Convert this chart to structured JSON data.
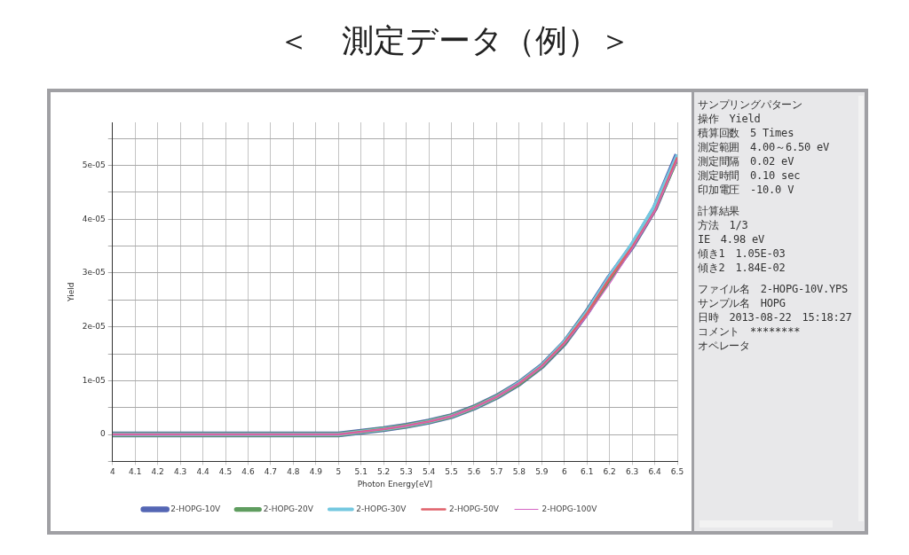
{
  "chart_data": {
    "type": "line",
    "title": "＜　測定データ（例）＞",
    "xlabel": "Photon Energy[eV]",
    "ylabel": "Yield",
    "x": [
      4.0,
      4.1,
      4.2,
      4.3,
      4.4,
      4.5,
      4.6,
      4.7,
      4.8,
      4.9,
      5.0,
      5.1,
      5.2,
      5.3,
      5.4,
      5.5,
      5.6,
      5.7,
      5.8,
      5.9,
      6.0,
      6.1,
      6.2,
      6.3,
      6.4,
      6.5
    ],
    "series": [
      {
        "name": "2-HOPG-10V",
        "color": "#5466b4",
        "values": [
          0,
          0,
          0,
          0,
          0,
          0,
          0,
          0,
          0,
          0,
          0,
          5e-07,
          1e-06,
          1.6e-06,
          2.4e-06,
          3.4e-06,
          5e-06,
          7e-06,
          9.5e-06,
          1.27e-05,
          1.7e-05,
          2.27e-05,
          2.92e-05,
          3.5e-05,
          4.2e-05,
          5.2e-05
        ]
      },
      {
        "name": "2-HOPG-20V",
        "color": "#5f9d5f",
        "values": [
          0,
          0,
          0,
          0,
          0,
          0,
          0,
          0,
          0,
          0,
          0,
          5e-07,
          1e-06,
          1.6e-06,
          2.4e-06,
          3.4e-06,
          5e-06,
          7e-06,
          9.5e-06,
          1.27e-05,
          1.7e-05,
          2.27e-05,
          2.9e-05,
          3.5e-05,
          4.2e-05,
          5.15e-05
        ]
      },
      {
        "name": "2-HOPG-30V",
        "color": "#74c8e0",
        "values": [
          0,
          0,
          0,
          0,
          0,
          0,
          0,
          0,
          0,
          0,
          0,
          5e-07,
          1e-06,
          1.6e-06,
          2.4e-06,
          3.4e-06,
          5e-06,
          7e-06,
          9.6e-06,
          1.28e-05,
          1.72e-05,
          2.28e-05,
          2.94e-05,
          3.55e-05,
          4.25e-05,
          5.2e-05
        ]
      },
      {
        "name": "2-HOPG-50V",
        "color": "#e0606a",
        "values": [
          0,
          0,
          0,
          0,
          0,
          0,
          0,
          0,
          0,
          0,
          0,
          5e-07,
          1e-06,
          1.6e-06,
          2.4e-06,
          3.4e-06,
          5e-06,
          7e-06,
          9.5e-06,
          1.27e-05,
          1.7e-05,
          2.25e-05,
          2.9e-05,
          3.48e-05,
          4.15e-05,
          5.15e-05
        ]
      },
      {
        "name": "2-HOPG-100V",
        "color": "#d464c4",
        "values": [
          0,
          0,
          0,
          0,
          0,
          0,
          0,
          0,
          0,
          0,
          0,
          5e-07,
          1e-06,
          1.6e-06,
          2.4e-06,
          3.4e-06,
          5e-06,
          7e-06,
          9.5e-06,
          1.26e-05,
          1.68e-05,
          2.2e-05,
          2.8e-05,
          3.45e-05,
          4.15e-05,
          5.1e-05
        ]
      }
    ],
    "xlim": [
      4,
      6.5
    ],
    "xticks": [
      4,
      4.1,
      4.2,
      4.3,
      4.4,
      4.5,
      4.6,
      4.7,
      4.8,
      4.9,
      5,
      5.1,
      5.2,
      5.3,
      5.4,
      5.5,
      5.6,
      5.7,
      5.8,
      5.9,
      6,
      6.1,
      6.2,
      6.3,
      6.4,
      6.5
    ],
    "ylim": [
      -5e-06,
      5.8e-05
    ],
    "yticks": [
      {
        "value": -5e-06,
        "label": null
      },
      0,
      {
        "value": 5e-06,
        "label": null
      },
      {
        "value": 1e-05,
        "label": "1e-05"
      },
      {
        "value": 1.5e-05,
        "label": null
      },
      {
        "value": 2e-05,
        "label": "2e-05"
      },
      {
        "value": 2.5e-05,
        "label": null
      },
      {
        "value": 3e-05,
        "label": "3e-05"
      },
      {
        "value": 3.5e-05,
        "label": null
      },
      {
        "value": 4e-05,
        "label": "4e-05"
      },
      {
        "value": 4.5e-05,
        "label": null
      },
      {
        "value": 5e-05,
        "label": "5e-05"
      },
      {
        "value": 5.5e-05,
        "label": null
      }
    ],
    "grid": true,
    "legend": "bottom",
    "marker": "none",
    "line_style": "solid",
    "annotations": [
      "サンプリングパターン",
      "操作　Yield",
      "積算回数　5 Times",
      "測定範囲　4.00～6.50 eV",
      "測定間隔　0.02 eV",
      "測定時間　0.10 sec",
      "印加電圧　-10.0 V",
      "計算結果",
      "方法　1/3",
      "IE　4.98 eV",
      "傾き1　1.05E-03",
      "傾き2　1.84E-02",
      "ファイル名　2-HOPG-10V.YPS",
      "サンプル名　HOPG",
      "日時　2013-08-22　15:18:27",
      "コメント　********",
      "オペレータ"
    ]
  }
}
